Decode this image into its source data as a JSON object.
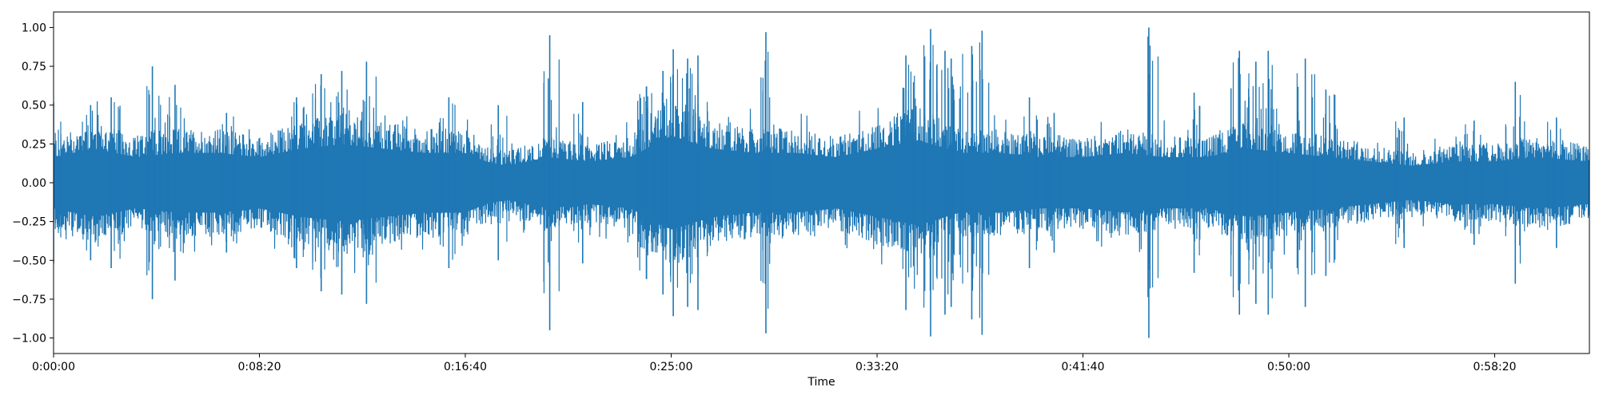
{
  "chart_data": {
    "type": "line",
    "title": "",
    "xlabel": "Time",
    "ylabel": "",
    "x_unit": "seconds",
    "xlim": [
      0,
      3730
    ],
    "ylim": [
      -1.1,
      1.1
    ],
    "x_ticks": [
      {
        "value": 0,
        "label": "0:00:00"
      },
      {
        "value": 500,
        "label": "0:08:20"
      },
      {
        "value": 1000,
        "label": "0:16:40"
      },
      {
        "value": 1500,
        "label": "0:25:00"
      },
      {
        "value": 2000,
        "label": "0:33:20"
      },
      {
        "value": 2500,
        "label": "0:41:40"
      },
      {
        "value": 3000,
        "label": "0:50:00"
      },
      {
        "value": 3500,
        "label": "0:58:20"
      }
    ],
    "y_ticks": [
      {
        "value": 1.0,
        "label": "1.00"
      },
      {
        "value": 0.75,
        "label": "0.75"
      },
      {
        "value": 0.5,
        "label": "0.50"
      },
      {
        "value": 0.25,
        "label": "0.25"
      },
      {
        "value": 0.0,
        "label": "0.00"
      },
      {
        "value": -0.25,
        "label": "−0.25"
      },
      {
        "value": -0.5,
        "label": "−0.50"
      },
      {
        "value": -0.75,
        "label": "−0.75"
      },
      {
        "value": -1.0,
        "label": "−1.00"
      }
    ],
    "grid": false,
    "legend": "none",
    "series": [
      {
        "color": "#1f77b4",
        "envelope": [
          {
            "t": 0,
            "amp": 0.3
          },
          {
            "t": 100,
            "amp": 0.4
          },
          {
            "t": 200,
            "amp": 0.3
          },
          {
            "t": 300,
            "amp": 0.35
          },
          {
            "t": 400,
            "amp": 0.35
          },
          {
            "t": 500,
            "amp": 0.3
          },
          {
            "t": 600,
            "amp": 0.4
          },
          {
            "t": 700,
            "amp": 0.45
          },
          {
            "t": 800,
            "amp": 0.4
          },
          {
            "t": 900,
            "amp": 0.35
          },
          {
            "t": 1000,
            "amp": 0.35
          },
          {
            "t": 1050,
            "amp": 0.25
          },
          {
            "t": 1100,
            "amp": 0.2
          },
          {
            "t": 1200,
            "amp": 0.3
          },
          {
            "t": 1300,
            "amp": 0.25
          },
          {
            "t": 1400,
            "amp": 0.3
          },
          {
            "t": 1500,
            "amp": 0.55
          },
          {
            "t": 1600,
            "amp": 0.4
          },
          {
            "t": 1700,
            "amp": 0.35
          },
          {
            "t": 1800,
            "amp": 0.35
          },
          {
            "t": 1900,
            "amp": 0.3
          },
          {
            "t": 2000,
            "amp": 0.4
          },
          {
            "t": 2100,
            "amp": 0.5
          },
          {
            "t": 2200,
            "amp": 0.35
          },
          {
            "t": 2300,
            "amp": 0.35
          },
          {
            "t": 2400,
            "amp": 0.3
          },
          {
            "t": 2500,
            "amp": 0.3
          },
          {
            "t": 2600,
            "amp": 0.35
          },
          {
            "t": 2700,
            "amp": 0.3
          },
          {
            "t": 2800,
            "amp": 0.3
          },
          {
            "t": 2900,
            "amp": 0.4
          },
          {
            "t": 3000,
            "amp": 0.35
          },
          {
            "t": 3100,
            "amp": 0.3
          },
          {
            "t": 3200,
            "amp": 0.25
          },
          {
            "t": 3300,
            "amp": 0.2
          },
          {
            "t": 3400,
            "amp": 0.25
          },
          {
            "t": 3500,
            "amp": 0.25
          },
          {
            "t": 3600,
            "amp": 0.3
          },
          {
            "t": 3730,
            "amp": 0.25
          }
        ],
        "peaks": [
          {
            "t": 0,
            "amp": 0.52
          },
          {
            "t": 90,
            "amp": 0.5
          },
          {
            "t": 140,
            "amp": 0.55
          },
          {
            "t": 240,
            "amp": 0.75
          },
          {
            "t": 295,
            "amp": 0.63
          },
          {
            "t": 420,
            "amp": 0.45
          },
          {
            "t": 590,
            "amp": 0.55
          },
          {
            "t": 650,
            "amp": 0.7
          },
          {
            "t": 700,
            "amp": 0.72
          },
          {
            "t": 760,
            "amp": 0.78
          },
          {
            "t": 960,
            "amp": 0.55
          },
          {
            "t": 1080,
            "amp": 0.5
          },
          {
            "t": 1205,
            "amp": 0.95
          },
          {
            "t": 1285,
            "amp": 0.52
          },
          {
            "t": 1440,
            "amp": 0.62
          },
          {
            "t": 1440,
            "amp": 0.62
          },
          {
            "t": 1480,
            "amp": 0.72
          },
          {
            "t": 1505,
            "amp": 0.86
          },
          {
            "t": 1540,
            "amp": 0.8
          },
          {
            "t": 1565,
            "amp": 0.82
          },
          {
            "t": 1730,
            "amp": 0.97
          },
          {
            "t": 2070,
            "amp": 0.82
          },
          {
            "t": 2130,
            "amp": 0.99
          },
          {
            "t": 2165,
            "amp": 0.85
          },
          {
            "t": 2180,
            "amp": 0.8
          },
          {
            "t": 2230,
            "amp": 0.88
          },
          {
            "t": 2255,
            "amp": 0.98
          },
          {
            "t": 2370,
            "amp": 0.55
          },
          {
            "t": 2430,
            "amp": 0.45
          },
          {
            "t": 2660,
            "amp": 1.0
          },
          {
            "t": 2770,
            "amp": 0.58
          },
          {
            "t": 2880,
            "amp": 0.85
          },
          {
            "t": 2920,
            "amp": 0.78
          },
          {
            "t": 2950,
            "amp": 0.85
          },
          {
            "t": 3040,
            "amp": 0.8
          },
          {
            "t": 3090,
            "amp": 0.6
          },
          {
            "t": 3280,
            "amp": 0.42
          },
          {
            "t": 3450,
            "amp": 0.4
          },
          {
            "t": 3550,
            "amp": 0.65
          },
          {
            "t": 3650,
            "amp": 0.42
          }
        ]
      }
    ]
  }
}
